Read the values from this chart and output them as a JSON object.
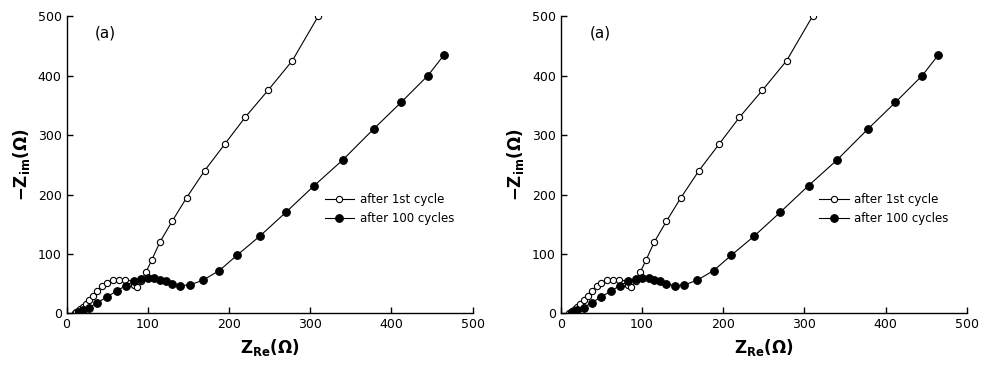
{
  "panel_labels": [
    "(a)",
    "(a)"
  ],
  "xlim": [
    0,
    500
  ],
  "ylim": [
    0,
    500
  ],
  "xticks": [
    0,
    100,
    200,
    300,
    400,
    500
  ],
  "yticks": [
    0,
    100,
    200,
    300,
    400,
    500
  ],
  "legend_labels": [
    "after 1st cycle",
    "after 100 cycles"
  ],
  "panel1": {
    "cycle1_re": [
      10,
      12,
      14,
      17,
      20,
      24,
      28,
      33,
      38,
      44,
      50,
      57,
      64,
      72,
      78,
      83,
      87,
      92,
      98,
      105,
      115,
      130,
      148,
      170,
      195,
      220,
      248,
      278,
      310
    ],
    "cycle1_im": [
      1,
      2,
      4,
      7,
      11,
      16,
      22,
      30,
      38,
      46,
      52,
      56,
      57,
      56,
      52,
      48,
      44,
      55,
      70,
      90,
      120,
      155,
      195,
      240,
      285,
      330,
      375,
      425,
      500
    ],
    "cycle100_re": [
      15,
      20,
      28,
      38,
      50,
      62,
      73,
      83,
      92,
      100,
      108,
      115,
      122,
      130,
      140,
      152,
      168,
      188,
      210,
      238,
      270,
      305,
      340,
      378,
      412,
      445,
      465
    ],
    "cycle100_im": [
      2,
      5,
      10,
      18,
      28,
      38,
      47,
      54,
      58,
      60,
      59,
      57,
      54,
      50,
      47,
      48,
      56,
      72,
      98,
      130,
      170,
      215,
      258,
      310,
      355,
      400,
      435
    ]
  },
  "panel2": {
    "cycle1_re": [
      10,
      12,
      14,
      17,
      20,
      24,
      28,
      33,
      38,
      44,
      50,
      57,
      64,
      72,
      78,
      83,
      87,
      92,
      98,
      105,
      115,
      130,
      148,
      170,
      195,
      220,
      248,
      278,
      310
    ],
    "cycle1_im": [
      1,
      2,
      4,
      7,
      11,
      16,
      22,
      30,
      38,
      46,
      52,
      56,
      57,
      56,
      52,
      48,
      44,
      55,
      70,
      90,
      120,
      155,
      195,
      240,
      285,
      330,
      375,
      425,
      500
    ],
    "cycle100_re": [
      15,
      20,
      28,
      38,
      50,
      62,
      73,
      83,
      92,
      100,
      108,
      115,
      122,
      130,
      140,
      152,
      168,
      188,
      210,
      238,
      270,
      305,
      340,
      378,
      412,
      445,
      465
    ],
    "cycle100_im": [
      2,
      5,
      10,
      18,
      28,
      38,
      47,
      54,
      58,
      60,
      59,
      57,
      54,
      50,
      47,
      48,
      56,
      72,
      98,
      130,
      170,
      215,
      258,
      310,
      355,
      400,
      435
    ]
  }
}
